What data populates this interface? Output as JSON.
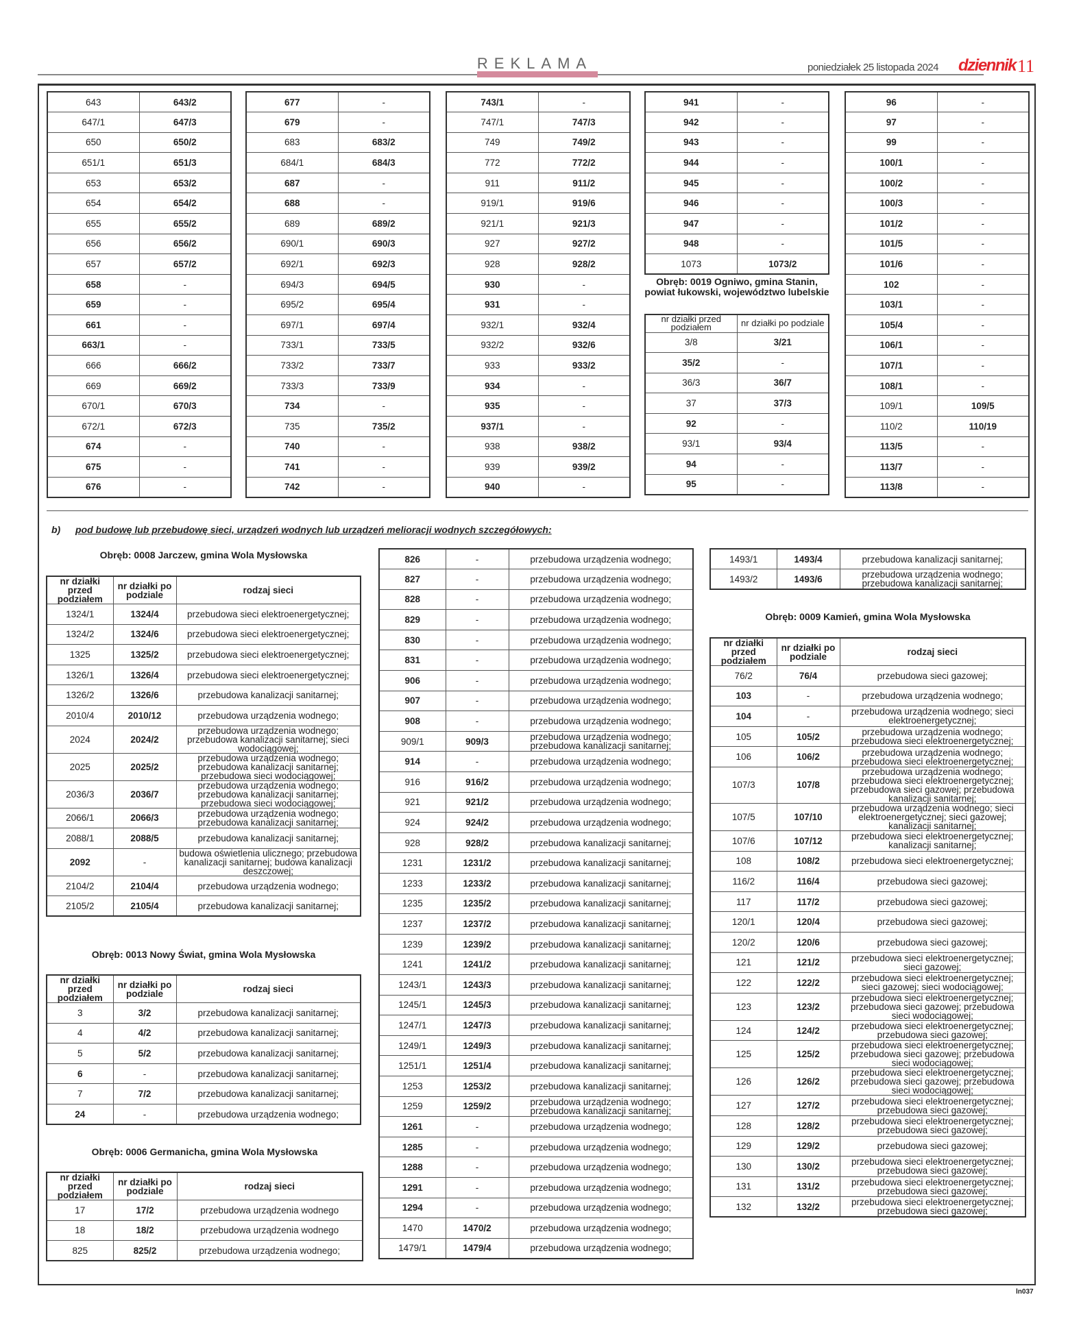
{
  "header": {
    "section": "REKLAMA",
    "date": "poniedziałek 25 listopada 2024",
    "logo": "dziennik",
    "page_number": "11"
  },
  "top_groups": [
    {
      "rows": [
        [
          "643",
          "643/2"
        ],
        [
          "647/1",
          "647/3"
        ],
        [
          "650",
          "650/2"
        ],
        [
          "651/1",
          "651/3"
        ],
        [
          "653",
          "653/2"
        ],
        [
          "654",
          "654/2"
        ],
        [
          "655",
          "655/2"
        ],
        [
          "656",
          "656/2"
        ],
        [
          "657",
          "657/2"
        ],
        [
          "658",
          "-"
        ],
        [
          "659",
          "-"
        ],
        [
          "661",
          "-"
        ],
        [
          "663/1",
          "-"
        ],
        [
          "666",
          "666/2"
        ],
        [
          "669",
          "669/2"
        ],
        [
          "670/1",
          "670/3"
        ],
        [
          "672/1",
          "672/3"
        ],
        [
          "674",
          "-"
        ],
        [
          "675",
          "-"
        ],
        [
          "676",
          "-"
        ]
      ]
    },
    {
      "rows": [
        [
          "677",
          "-"
        ],
        [
          "679",
          "-"
        ],
        [
          "683",
          "683/2"
        ],
        [
          "684/1",
          "684/3"
        ],
        [
          "687",
          "-"
        ],
        [
          "688",
          "-"
        ],
        [
          "689",
          "689/2"
        ],
        [
          "690/1",
          "690/3"
        ],
        [
          "692/1",
          "692/3"
        ],
        [
          "694/3",
          "694/5"
        ],
        [
          "695/2",
          "695/4"
        ],
        [
          "697/1",
          "697/4"
        ],
        [
          "733/1",
          "733/5"
        ],
        [
          "733/2",
          "733/7"
        ],
        [
          "733/3",
          "733/9"
        ],
        [
          "734",
          "-"
        ],
        [
          "735",
          "735/2"
        ],
        [
          "740",
          "-"
        ],
        [
          "741",
          "-"
        ],
        [
          "742",
          "-"
        ]
      ]
    },
    {
      "rows": [
        [
          "743/1",
          "-"
        ],
        [
          "747/1",
          "747/3"
        ],
        [
          "749",
          "749/2"
        ],
        [
          "772",
          "772/2"
        ],
        [
          "911",
          "911/2"
        ],
        [
          "919/1",
          "919/6"
        ],
        [
          "921/1",
          "921/3"
        ],
        [
          "927",
          "927/2"
        ],
        [
          "928",
          "928/2"
        ],
        [
          "930",
          "-"
        ],
        [
          "931",
          "-"
        ],
        [
          "932/1",
          "932/4"
        ],
        [
          "932/2",
          "932/6"
        ],
        [
          "933",
          "933/2"
        ],
        [
          "934",
          "-"
        ],
        [
          "935",
          "-"
        ],
        [
          "937/1",
          "-"
        ],
        [
          "938",
          "938/2"
        ],
        [
          "939",
          "939/2"
        ],
        [
          "940",
          "-"
        ]
      ]
    },
    {
      "rows": [
        [
          "941",
          "-"
        ],
        [
          "942",
          "-"
        ],
        [
          "943",
          "-"
        ],
        [
          "944",
          "-"
        ],
        [
          "945",
          "-"
        ],
        [
          "946",
          "-"
        ],
        [
          "947",
          "-"
        ],
        [
          "948",
          "-"
        ],
        [
          "1073",
          "1073/2"
        ]
      ],
      "subsection": {
        "heading": "Obręb: 0019 Ogniwo, gmina Stanin, powiat łukowski, województwo lubelskie",
        "headers": [
          "nr działki przed podziałem",
          "nr działki po podziale"
        ],
        "rows": [
          [
            "3/8",
            "3/21"
          ],
          [
            "35/2",
            "-"
          ],
          [
            "36/3",
            "36/7"
          ],
          [
            "37",
            "37/3"
          ],
          [
            "92",
            "-"
          ],
          [
            "93/1",
            "93/4"
          ],
          [
            "94",
            "-"
          ],
          [
            "95",
            "-"
          ]
        ]
      }
    },
    {
      "rows": [
        [
          "96",
          "-"
        ],
        [
          "97",
          "-"
        ],
        [
          "99",
          "-"
        ],
        [
          "100/1",
          "-"
        ],
        [
          "100/2",
          "-"
        ],
        [
          "100/3",
          "-"
        ],
        [
          "101/2",
          "-"
        ],
        [
          "101/5",
          "-"
        ],
        [
          "101/6",
          "-"
        ],
        [
          "102",
          "-"
        ],
        [
          "103/1",
          "-"
        ],
        [
          "105/4",
          "-"
        ],
        [
          "106/1",
          "-"
        ],
        [
          "107/1",
          "-"
        ],
        [
          "108/1",
          "-"
        ],
        [
          "109/1",
          "109/5"
        ],
        [
          "110/2",
          "110/19"
        ],
        [
          "113/5",
          "-"
        ],
        [
          "113/7",
          "-"
        ],
        [
          "113/8",
          "-"
        ]
      ]
    }
  ],
  "section_b": {
    "label": "b)",
    "title": "pod budowę lub przebudowę sieci, urządzeń wodnych lub urządzeń melioracji wodnych szczegółowych:"
  },
  "tables": [
    {
      "heading": "Obręb: 0008 Jarczew, gmina Wola Mysłowska",
      "headers": [
        "nr działki przed podziałem",
        "nr działki po podziale",
        "rodzaj sieci"
      ],
      "rows": [
        [
          "1324/1",
          "1324/4",
          "przebudowa sieci elektroenergetycznej;"
        ],
        [
          "1324/2",
          "1324/6",
          "przebudowa sieci elektroenergetycznej;"
        ],
        [
          "1325",
          "1325/2",
          "przebudowa sieci elektroenergetycznej;"
        ],
        [
          "1326/1",
          "1326/4",
          "przebudowa sieci elektroenergetycznej;"
        ],
        [
          "1326/2",
          "1326/6",
          "przebudowa kanalizacji sanitarnej;"
        ],
        [
          "2010/4",
          "2010/12",
          "przebudowa urządzenia wodnego;"
        ],
        [
          "2024",
          "2024/2",
          "przebudowa urządzenia wodnego; przebudowa kanalizacji sanitarnej; sieci wodociągowej;"
        ],
        [
          "2025",
          "2025/2",
          "przebudowa urządzenia wodnego; przebudowa kanalizacji sanitarnej; przebudowa sieci wodociągowej;"
        ],
        [
          "2036/3",
          "2036/7",
          "przebudowa urządzenia wodnego; przebudowa kanalizacji sanitarnej; przebudowa sieci wodociągowej;"
        ],
        [
          "2066/1",
          "2066/3",
          "przebudowa urządzenia wodnego; przebudowa kanalizacji sanitarnej;"
        ],
        [
          "2088/1",
          "2088/5",
          "przebudowa kanalizacji sanitarnej;"
        ],
        [
          "2092",
          "-",
          "budowa oświetlenia ulicznego; przebudowa kanalizacji sanitarnej; budowa kanalizacji deszczowej;"
        ],
        [
          "2104/2",
          "2104/4",
          "przebudowa urządzenia wodnego;"
        ],
        [
          "2105/2",
          "2105/4",
          "przebudowa kanalizacji sanitarnej;"
        ]
      ]
    },
    {
      "heading": "Obręb: 0013 Nowy Świat, gmina Wola Mysłowska",
      "headers": [
        "nr działki przed podziałem",
        "nr działki po podziale",
        "rodzaj sieci"
      ],
      "rows": [
        [
          "3",
          "3/2",
          "przebudowa kanalizacji sanitarnej;"
        ],
        [
          "4",
          "4/2",
          "przebudowa kanalizacji sanitarnej;"
        ],
        [
          "5",
          "5/2",
          "przebudowa kanalizacji sanitarnej;"
        ],
        [
          "6",
          "-",
          "przebudowa kanalizacji sanitarnej;"
        ],
        [
          "7",
          "7/2",
          "przebudowa kanalizacji sanitarnej;"
        ],
        [
          "24",
          "-",
          "przebudowa urządzenia wodnego;"
        ]
      ]
    },
    {
      "heading": "Obręb: 0006 Germanicha, gmina Wola Mysłowska",
      "headers": [
        "nr działki przed podziałem",
        "nr działki po podziale",
        "rodzaj sieci"
      ],
      "rows": [
        [
          "17",
          "17/2",
          "przebudowa urządzenia wodnego"
        ],
        [
          "18",
          "18/2",
          "przebudowa urządzenia wodnego"
        ],
        [
          "825",
          "825/2",
          "przebudowa urządzenia wodnego;"
        ]
      ]
    },
    {
      "heading": "",
      "headers": [],
      "rows": [
        [
          "826",
          "-",
          "przebudowa urządzenia wodnego;"
        ],
        [
          "827",
          "-",
          "przebudowa urządzenia wodnego;"
        ],
        [
          "828",
          "-",
          "przebudowa urządzenia wodnego;"
        ],
        [
          "829",
          "-",
          "przebudowa urządzenia wodnego;"
        ],
        [
          "830",
          "-",
          "przebudowa urządzenia wodnego;"
        ],
        [
          "831",
          "-",
          "przebudowa urządzenia wodnego;"
        ],
        [
          "906",
          "-",
          "przebudowa urządzenia wodnego;"
        ],
        [
          "907",
          "-",
          "przebudowa urządzenia wodnego;"
        ],
        [
          "908",
          "-",
          "przebudowa urządzenia wodnego;"
        ],
        [
          "909/1",
          "909/3",
          "przebudowa urządzenia wodnego; przebudowa kanalizacji sanitarnej;"
        ],
        [
          "914",
          "-",
          "przebudowa urządzenia wodnego;"
        ],
        [
          "916",
          "916/2",
          "przebudowa urządzenia wodnego;"
        ],
        [
          "921",
          "921/2",
          "przebudowa urządzenia wodnego;"
        ],
        [
          "924",
          "924/2",
          "przebudowa urządzenia wodnego;"
        ],
        [
          "928",
          "928/2",
          "przebudowa kanalizacji sanitarnej;"
        ],
        [
          "1231",
          "1231/2",
          "przebudowa kanalizacji sanitarnej;"
        ],
        [
          "1233",
          "1233/2",
          "przebudowa kanalizacji sanitarnej;"
        ],
        [
          "1235",
          "1235/2",
          "przebudowa kanalizacji sanitarnej;"
        ],
        [
          "1237",
          "1237/2",
          "przebudowa kanalizacji sanitarnej;"
        ],
        [
          "1239",
          "1239/2",
          "przebudowa kanalizacji sanitarnej;"
        ],
        [
          "1241",
          "1241/2",
          "przebudowa kanalizacji sanitarnej;"
        ],
        [
          "1243/1",
          "1243/3",
          "przebudowa kanalizacji sanitarnej;"
        ],
        [
          "1245/1",
          "1245/3",
          "przebudowa kanalizacji sanitarnej;"
        ],
        [
          "1247/1",
          "1247/3",
          "przebudowa kanalizacji sanitarnej;"
        ],
        [
          "1249/1",
          "1249/3",
          "przebudowa kanalizacji sanitarnej;"
        ],
        [
          "1251/1",
          "1251/4",
          "przebudowa kanalizacji sanitarnej;"
        ],
        [
          "1253",
          "1253/2",
          "przebudowa kanalizacji sanitarnej;"
        ],
        [
          "1259",
          "1259/2",
          "przebudowa urządzenia wodnego; przebudowa kanalizacji sanitarnej;"
        ],
        [
          "1261",
          "-",
          "przebudowa urządzenia wodnego;"
        ],
        [
          "1285",
          "-",
          "przebudowa urządzenia wodnego;"
        ],
        [
          "1288",
          "-",
          "przebudowa urządzenia wodnego;"
        ],
        [
          "1291",
          "-",
          "przebudowa urządzenia wodnego;"
        ],
        [
          "1294",
          "-",
          "przebudowa urządzenia wodnego;"
        ],
        [
          "1470",
          "1470/2",
          "przebudowa urządzenia wodnego;"
        ],
        [
          "1479/1",
          "1479/4",
          "przebudowa urządzenia wodnego;"
        ]
      ]
    },
    {
      "heading": "",
      "headers": [],
      "rows": [
        [
          "1493/1",
          "1493/4",
          "przebudowa kanalizacji sanitarnej;"
        ],
        [
          "1493/2",
          "1493/6",
          "przebudowa urządzenia wodnego; przebudowa kanalizacji sanitarnej;"
        ]
      ]
    },
    {
      "heading": "Obręb: 0009 Kamień, gmina Wola Mysłowska",
      "headers": [
        "nr działki przed podziałem",
        "nr działki po podziale",
        "rodzaj sieci"
      ],
      "rows": [
        [
          "76/2",
          "76/4",
          "przebudowa sieci gazowej;"
        ],
        [
          "103",
          "-",
          "przebudowa urządzenia wodnego;"
        ],
        [
          "104",
          "-",
          "przebudowa urządzenia wodnego; sieci elektroenergetycznej;"
        ],
        [
          "105",
          "105/2",
          "przebudowa urządzenia wodnego; przebudowa sieci elektroenergetycznej;"
        ],
        [
          "106",
          "106/2",
          "przebudowa urządzenia wodnego; przebudowa sieci elektroenergetycznej;"
        ],
        [
          "107/3",
          "107/8",
          "przebudowa urządzenia wodnego; przebudowa sieci elektroenergetycznej; przebudowa sieci gazowej; przebudowa kanalizacji sanitarnej;"
        ],
        [
          "107/5",
          "107/10",
          "przebudowa urządzenia wodnego; sieci elektroenergetycznej; sieci gazowej; kanalizacji sanitarnej;"
        ],
        [
          "107/6",
          "107/12",
          "przebudowa sieci elektroenergetycznej; kanalizacji sanitarnej;"
        ],
        [
          "108",
          "108/2",
          "przebudowa sieci elektroenergetycznej;"
        ],
        [
          "116/2",
          "116/4",
          "przebudowa sieci gazowej;"
        ],
        [
          "117",
          "117/2",
          "przebudowa sieci gazowej;"
        ],
        [
          "120/1",
          "120/4",
          "przebudowa sieci gazowej;"
        ],
        [
          "120/2",
          "120/6",
          "przebudowa sieci gazowej;"
        ],
        [
          "121",
          "121/2",
          "przebudowa sieci elektroenergetycznej; sieci gazowej;"
        ],
        [
          "122",
          "122/2",
          "przebudowa sieci elektroenergetycznej; sieci gazowej; sieci wodociągowej;"
        ],
        [
          "123",
          "123/2",
          "przebudowa sieci elektroenergetycznej; przebudowa sieci gazowej; przebudowa sieci wodociągowej;"
        ],
        [
          "124",
          "124/2",
          "przebudowa sieci elektroenergetycznej; przebudowa sieci gazowej;"
        ],
        [
          "125",
          "125/2",
          "przebudowa sieci elektroenergetycznej; przebudowa sieci gazowej; przebudowa sieci wodociągowej;"
        ],
        [
          "126",
          "126/2",
          "przebudowa sieci elektroenergetycznej; przebudowa sieci gazowej; przebudowa sieci wodociągowej;"
        ],
        [
          "127",
          "127/2",
          "przebudowa sieci elektroenergetycznej; przebudowa sieci gazowej;"
        ],
        [
          "128",
          "128/2",
          "przebudowa sieci elektroenergetycznej; przebudowa sieci gazowej;"
        ],
        [
          "129",
          "129/2",
          "przebudowa sieci gazowej;"
        ],
        [
          "130",
          "130/2",
          "przebudowa sieci elektroenergetycznej; przebudowa sieci gazowej;"
        ],
        [
          "131",
          "131/2",
          "przebudowa sieci elektroenergetycznej; przebudowa sieci gazowej;"
        ],
        [
          "132",
          "132/2",
          "przebudowa sieci elektroenergetycznej; przebudowa sieci gazowej;"
        ]
      ]
    }
  ],
  "footer": {
    "code": "ln037"
  }
}
